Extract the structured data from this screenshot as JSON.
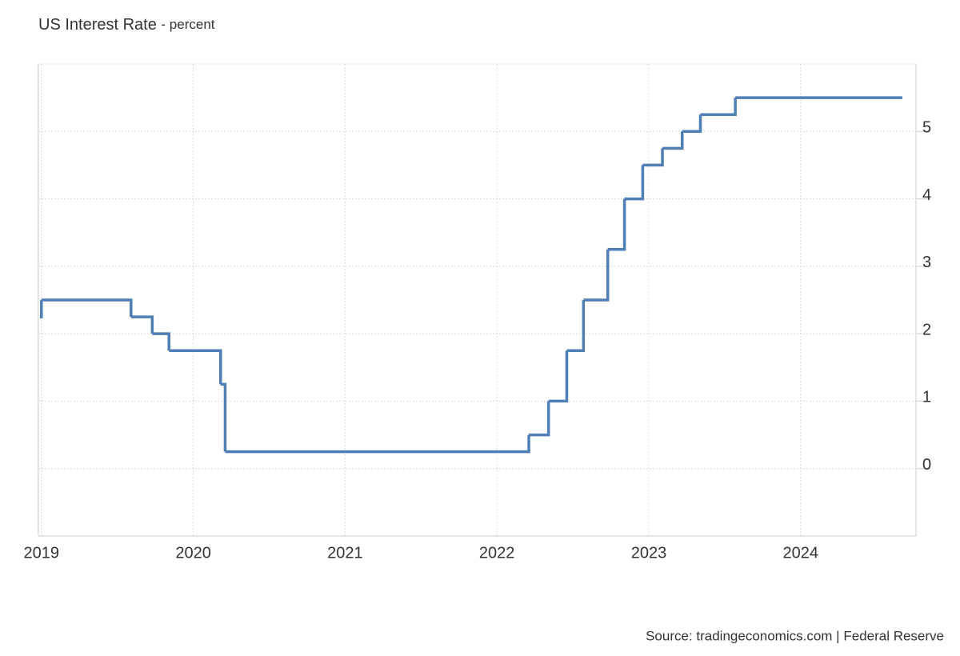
{
  "chart_data": {
    "type": "line",
    "step": "after",
    "title": "US Interest Rate",
    "subtitle": "- percent",
    "source": "Source: tradingeconomics.com | Federal Reserve",
    "x": [
      2018.99,
      2019.0,
      2019.59,
      2019.73,
      2019.84,
      2020.18,
      2020.21,
      2022.21,
      2022.34,
      2022.46,
      2022.57,
      2022.73,
      2022.84,
      2022.96,
      2023.09,
      2023.22,
      2023.34,
      2023.57,
      2024.67
    ],
    "series": [
      {
        "name": "US Interest Rate",
        "color": "#4f7fb4",
        "values": [
          2.25,
          2.5,
          2.25,
          2.0,
          1.75,
          1.25,
          0.25,
          0.5,
          1.0,
          1.75,
          2.5,
          3.25,
          4.0,
          4.5,
          4.75,
          5.0,
          5.25,
          5.5,
          5.5
        ]
      }
    ],
    "xlim": [
      2018.98,
      2024.76
    ],
    "xticks": [
      2019,
      2020,
      2021,
      2022,
      2023,
      2024
    ],
    "ylim": [
      -1,
      6
    ],
    "yticks": [
      0,
      1,
      2,
      3,
      4,
      5
    ],
    "grid": true,
    "y_axis_side": "right"
  }
}
